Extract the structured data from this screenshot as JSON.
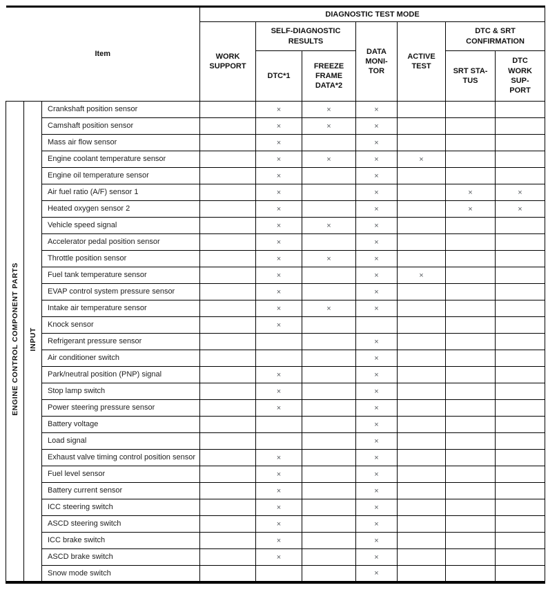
{
  "table": {
    "header": {
      "item_label": "Item",
      "diagnostic_test_mode": "DIAGNOSTIC TEST MODE",
      "work_support": "WORK\nSUPPORT",
      "self_diagnostic_results": "SELF-DIAGNOSTIC\nRESULTS",
      "dtc": "DTC*1",
      "freeze_frame_data": "FREEZE\nFRAME\nDATA*2",
      "data_monitor": "DATA\nMONI-\nTOR",
      "active_test": "ACTIVE\nTEST",
      "dtc_srt_confirmation": "DTC & SRT\nCONFIRMATION",
      "srt_status": "SRT STA-\nTUS",
      "dtc_work_support": "DTC\nWORK\nSUP-\nPORT"
    },
    "column_keys": [
      "work-support",
      "dtc",
      "freeze-frame-data",
      "data-monitor",
      "active-test",
      "srt-status",
      "dtc-work-support"
    ],
    "vertical_groups": [
      {
        "key": "engine-control-component-parts",
        "label": "ENGINE CONTROL COMPONENT PARTS"
      },
      {
        "key": "input",
        "label": "INPUT"
      }
    ],
    "mark_symbol": "×",
    "rows": [
      {
        "item": "Crankshaft position sensor",
        "marks": [
          "",
          "×",
          "×",
          "×",
          "",
          "",
          ""
        ]
      },
      {
        "item": "Camshaft position sensor",
        "marks": [
          "",
          "×",
          "×",
          "×",
          "",
          "",
          ""
        ]
      },
      {
        "item": "Mass air flow sensor",
        "marks": [
          "",
          "×",
          "",
          "×",
          "",
          "",
          ""
        ]
      },
      {
        "item": "Engine coolant temperature sensor",
        "marks": [
          "",
          "×",
          "×",
          "×",
          "×",
          "",
          ""
        ]
      },
      {
        "item": "Engine oil temperature sensor",
        "marks": [
          "",
          "×",
          "",
          "×",
          "",
          "",
          ""
        ]
      },
      {
        "item": "Air fuel ratio (A/F) sensor 1",
        "marks": [
          "",
          "×",
          "",
          "×",
          "",
          "×",
          "×"
        ]
      },
      {
        "item": "Heated oxygen sensor 2",
        "marks": [
          "",
          "×",
          "",
          "×",
          "",
          "×",
          "×"
        ]
      },
      {
        "item": "Vehicle speed signal",
        "marks": [
          "",
          "×",
          "×",
          "×",
          "",
          "",
          ""
        ]
      },
      {
        "item": "Accelerator pedal position sensor",
        "marks": [
          "",
          "×",
          "",
          "×",
          "",
          "",
          ""
        ]
      },
      {
        "item": "Throttle position sensor",
        "marks": [
          "",
          "×",
          "×",
          "×",
          "",
          "",
          ""
        ]
      },
      {
        "item": "Fuel tank temperature sensor",
        "marks": [
          "",
          "×",
          "",
          "×",
          "×",
          "",
          ""
        ]
      },
      {
        "item": "EVAP control system pressure sensor",
        "marks": [
          "",
          "×",
          "",
          "×",
          "",
          "",
          ""
        ]
      },
      {
        "item": "Intake air temperature sensor",
        "marks": [
          "",
          "×",
          "×",
          "×",
          "",
          "",
          ""
        ]
      },
      {
        "item": "Knock sensor",
        "marks": [
          "",
          "×",
          "",
          "",
          "",
          "",
          ""
        ]
      },
      {
        "item": "Refrigerant pressure sensor",
        "marks": [
          "",
          "",
          "",
          "×",
          "",
          "",
          ""
        ]
      },
      {
        "item": "Air conditioner switch",
        "marks": [
          "",
          "",
          "",
          "×",
          "",
          "",
          ""
        ]
      },
      {
        "item": "Park/neutral position (PNP) signal",
        "marks": [
          "",
          "×",
          "",
          "×",
          "",
          "",
          ""
        ]
      },
      {
        "item": "Stop lamp switch",
        "marks": [
          "",
          "×",
          "",
          "×",
          "",
          "",
          ""
        ]
      },
      {
        "item": "Power steering pressure sensor",
        "marks": [
          "",
          "×",
          "",
          "×",
          "",
          "",
          ""
        ]
      },
      {
        "item": "Battery voltage",
        "marks": [
          "",
          "",
          "",
          "×",
          "",
          "",
          ""
        ]
      },
      {
        "item": "Load signal",
        "marks": [
          "",
          "",
          "",
          "×",
          "",
          "",
          ""
        ]
      },
      {
        "item": "Exhaust valve timing control position sensor",
        "marks": [
          "",
          "×",
          "",
          "×",
          "",
          "",
          ""
        ]
      },
      {
        "item": "Fuel level sensor",
        "marks": [
          "",
          "×",
          "",
          "×",
          "",
          "",
          ""
        ]
      },
      {
        "item": "Battery current sensor",
        "marks": [
          "",
          "×",
          "",
          "×",
          "",
          "",
          ""
        ]
      },
      {
        "item": "ICC steering switch",
        "marks": [
          "",
          "×",
          "",
          "×",
          "",
          "",
          ""
        ]
      },
      {
        "item": "ASCD steering switch",
        "marks": [
          "",
          "×",
          "",
          "×",
          "",
          "",
          ""
        ]
      },
      {
        "item": "ICC brake switch",
        "marks": [
          "",
          "×",
          "",
          "×",
          "",
          "",
          ""
        ]
      },
      {
        "item": "ASCD brake switch",
        "marks": [
          "",
          "×",
          "",
          "×",
          "",
          "",
          ""
        ]
      },
      {
        "item": "Snow mode switch",
        "marks": [
          "",
          "",
          "",
          "×",
          "",
          "",
          ""
        ]
      }
    ]
  },
  "colors": {
    "line": "#000000",
    "text": "#1c1c1c",
    "mark": "#54585c",
    "background": "#ffffff"
  }
}
